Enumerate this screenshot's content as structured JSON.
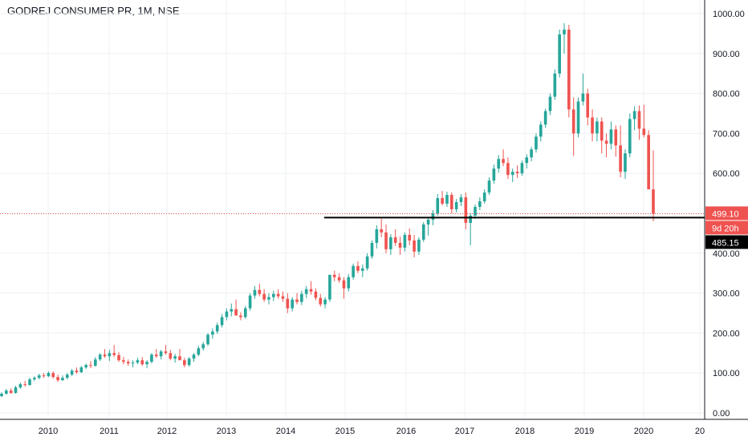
{
  "header": {
    "symbol_title": "GODREJ CONSUMER PR, 1M, NSE"
  },
  "colors": {
    "up": "#26a69a",
    "down": "#ef5350",
    "grid": "#eef0f3",
    "axis": "#131722",
    "price_line": "#ef5350",
    "level_line": "#000000"
  },
  "price_labels": {
    "last_price": "499.10",
    "countdown": "9d 20h",
    "level_price": "485.15"
  },
  "chart_data": {
    "type": "candlestick",
    "title": "GODREJ CONSUMER PR, 1M, NSE",
    "interval": "1M",
    "exchange": "NSE",
    "grid": true,
    "ylim": [
      -20,
      1020
    ],
    "x_tick_labels": [
      "2010",
      "2011",
      "2012",
      "2013",
      "2014",
      "2015",
      "2016",
      "2017",
      "2018",
      "2019",
      "2020",
      "20"
    ],
    "y_tick_labels": [
      "0.00",
      "100.00",
      "200.00",
      "300.00",
      "400.00",
      "500.00",
      "600.00",
      "700.00",
      "800.00",
      "900.00",
      "1000.00"
    ],
    "y_ticks": [
      0,
      100,
      200,
      300,
      400,
      500,
      600,
      700,
      800,
      900,
      1000
    ],
    "last_price": 499.1,
    "horizontal_level": 485.15,
    "candles_ohlc": [
      [
        42,
        52,
        40,
        48
      ],
      [
        48,
        60,
        46,
        56
      ],
      [
        56,
        62,
        48,
        50
      ],
      [
        50,
        68,
        48,
        64
      ],
      [
        64,
        76,
        60,
        72
      ],
      [
        72,
        80,
        66,
        70
      ],
      [
        70,
        88,
        68,
        84
      ],
      [
        84,
        92,
        80,
        88
      ],
      [
        88,
        98,
        84,
        94
      ],
      [
        94,
        100,
        88,
        92
      ],
      [
        92,
        104,
        90,
        100
      ],
      [
        100,
        104,
        86,
        90
      ],
      [
        90,
        96,
        78,
        82
      ],
      [
        82,
        94,
        80,
        88
      ],
      [
        88,
        100,
        84,
        96
      ],
      [
        96,
        110,
        92,
        106
      ],
      [
        106,
        114,
        98,
        102
      ],
      [
        102,
        118,
        100,
        114
      ],
      [
        114,
        124,
        110,
        120
      ],
      [
        120,
        130,
        112,
        118
      ],
      [
        118,
        140,
        116,
        134
      ],
      [
        134,
        150,
        130,
        146
      ],
      [
        146,
        160,
        138,
        142
      ],
      [
        142,
        158,
        130,
        150
      ],
      [
        150,
        170,
        140,
        145
      ],
      [
        145,
        152,
        128,
        132
      ],
      [
        132,
        140,
        122,
        128
      ],
      [
        128,
        134,
        118,
        124
      ],
      [
        124,
        132,
        114,
        126
      ],
      [
        126,
        138,
        122,
        132
      ],
      [
        132,
        140,
        118,
        122
      ],
      [
        122,
        132,
        112,
        128
      ],
      [
        128,
        150,
        124,
        146
      ],
      [
        146,
        160,
        138,
        142
      ],
      [
        142,
        158,
        134,
        154
      ],
      [
        154,
        170,
        146,
        150
      ],
      [
        150,
        158,
        132,
        136
      ],
      [
        136,
        148,
        126,
        142
      ],
      [
        142,
        160,
        138,
        132
      ],
      [
        132,
        138,
        114,
        120
      ],
      [
        120,
        140,
        116,
        136
      ],
      [
        136,
        150,
        128,
        146
      ],
      [
        146,
        168,
        142,
        162
      ],
      [
        162,
        178,
        156,
        172
      ],
      [
        172,
        200,
        168,
        196
      ],
      [
        196,
        212,
        186,
        204
      ],
      [
        204,
        226,
        198,
        220
      ],
      [
        220,
        248,
        214,
        240
      ],
      [
        240,
        262,
        232,
        254
      ],
      [
        254,
        274,
        242,
        260
      ],
      [
        260,
        284,
        250,
        244
      ],
      [
        244,
        252,
        232,
        240
      ],
      [
        240,
        268,
        236,
        262
      ],
      [
        262,
        300,
        256,
        294
      ],
      [
        294,
        318,
        286,
        308
      ],
      [
        308,
        324,
        292,
        298
      ],
      [
        298,
        310,
        278,
        284
      ],
      [
        284,
        300,
        272,
        290
      ],
      [
        290,
        306,
        280,
        298
      ],
      [
        298,
        310,
        286,
        292
      ],
      [
        292,
        304,
        278,
        286
      ],
      [
        286,
        300,
        250,
        262
      ],
      [
        262,
        290,
        254,
        284
      ],
      [
        284,
        300,
        272,
        278
      ],
      [
        278,
        306,
        270,
        298
      ],
      [
        298,
        318,
        288,
        310
      ],
      [
        310,
        330,
        296,
        304
      ],
      [
        304,
        312,
        282,
        288
      ],
      [
        288,
        298,
        266,
        272
      ],
      [
        272,
        290,
        262,
        284
      ],
      [
        284,
        330,
        278,
        346
      ],
      [
        346,
        356,
        330,
        340
      ],
      [
        340,
        350,
        326,
        332
      ],
      [
        332,
        340,
        286,
        312
      ],
      [
        312,
        348,
        304,
        340
      ],
      [
        340,
        374,
        334,
        368
      ],
      [
        368,
        380,
        350,
        356
      ],
      [
        356,
        372,
        340,
        362
      ],
      [
        362,
        400,
        356,
        392
      ],
      [
        392,
        432,
        386,
        426
      ],
      [
        426,
        470,
        412,
        460
      ],
      [
        460,
        486,
        440,
        452
      ],
      [
        452,
        472,
        400,
        410
      ],
      [
        410,
        448,
        396,
        440
      ],
      [
        440,
        460,
        418,
        426
      ],
      [
        426,
        442,
        396,
        414
      ],
      [
        414,
        452,
        404,
        446
      ],
      [
        446,
        462,
        420,
        432
      ],
      [
        432,
        446,
        390,
        404
      ],
      [
        404,
        440,
        396,
        434
      ],
      [
        434,
        478,
        428,
        472
      ],
      [
        472,
        490,
        444,
        484
      ],
      [
        484,
        508,
        470,
        500
      ],
      [
        500,
        548,
        494,
        538
      ],
      [
        538,
        556,
        520,
        524
      ],
      [
        524,
        554,
        516,
        546
      ],
      [
        546,
        552,
        500,
        510
      ],
      [
        510,
        536,
        502,
        528
      ],
      [
        528,
        548,
        518,
        540
      ],
      [
        540,
        552,
        460,
        476
      ],
      [
        476,
        500,
        420,
        494
      ],
      [
        494,
        522,
        486,
        516
      ],
      [
        516,
        540,
        508,
        530
      ],
      [
        530,
        560,
        524,
        552
      ],
      [
        552,
        590,
        546,
        582
      ],
      [
        582,
        622,
        574,
        612
      ],
      [
        612,
        646,
        602,
        636
      ],
      [
        636,
        660,
        618,
        626
      ],
      [
        626,
        640,
        586,
        596
      ],
      [
        596,
        612,
        578,
        604
      ],
      [
        604,
        620,
        588,
        600
      ],
      [
        600,
        632,
        594,
        626
      ],
      [
        626,
        648,
        612,
        640
      ],
      [
        640,
        666,
        630,
        660
      ],
      [
        660,
        700,
        652,
        692
      ],
      [
        692,
        730,
        680,
        722
      ],
      [
        722,
        762,
        714,
        756
      ],
      [
        756,
        800,
        746,
        792
      ],
      [
        792,
        860,
        784,
        850
      ],
      [
        850,
        960,
        840,
        948
      ],
      [
        948,
        976,
        900,
        960
      ],
      [
        960,
        972,
        740,
        760
      ],
      [
        760,
        790,
        644,
        700
      ],
      [
        700,
        790,
        690,
        780
      ],
      [
        780,
        850,
        770,
        800
      ],
      [
        800,
        812,
        720,
        740
      ],
      [
        740,
        760,
        680,
        700
      ],
      [
        700,
        740,
        680,
        730
      ],
      [
        730,
        740,
        650,
        682
      ],
      [
        682,
        700,
        640,
        674
      ],
      [
        674,
        730,
        660,
        710
      ],
      [
        710,
        720,
        642,
        670
      ],
      [
        670,
        720,
        590,
        604
      ],
      [
        604,
        660,
        586,
        650
      ],
      [
        650,
        750,
        640,
        736
      ],
      [
        736,
        768,
        708,
        756
      ],
      [
        756,
        770,
        684,
        712
      ],
      [
        712,
        772,
        690,
        696
      ],
      [
        696,
        708,
        600,
        560
      ],
      [
        560,
        658,
        480,
        499
      ]
    ]
  }
}
